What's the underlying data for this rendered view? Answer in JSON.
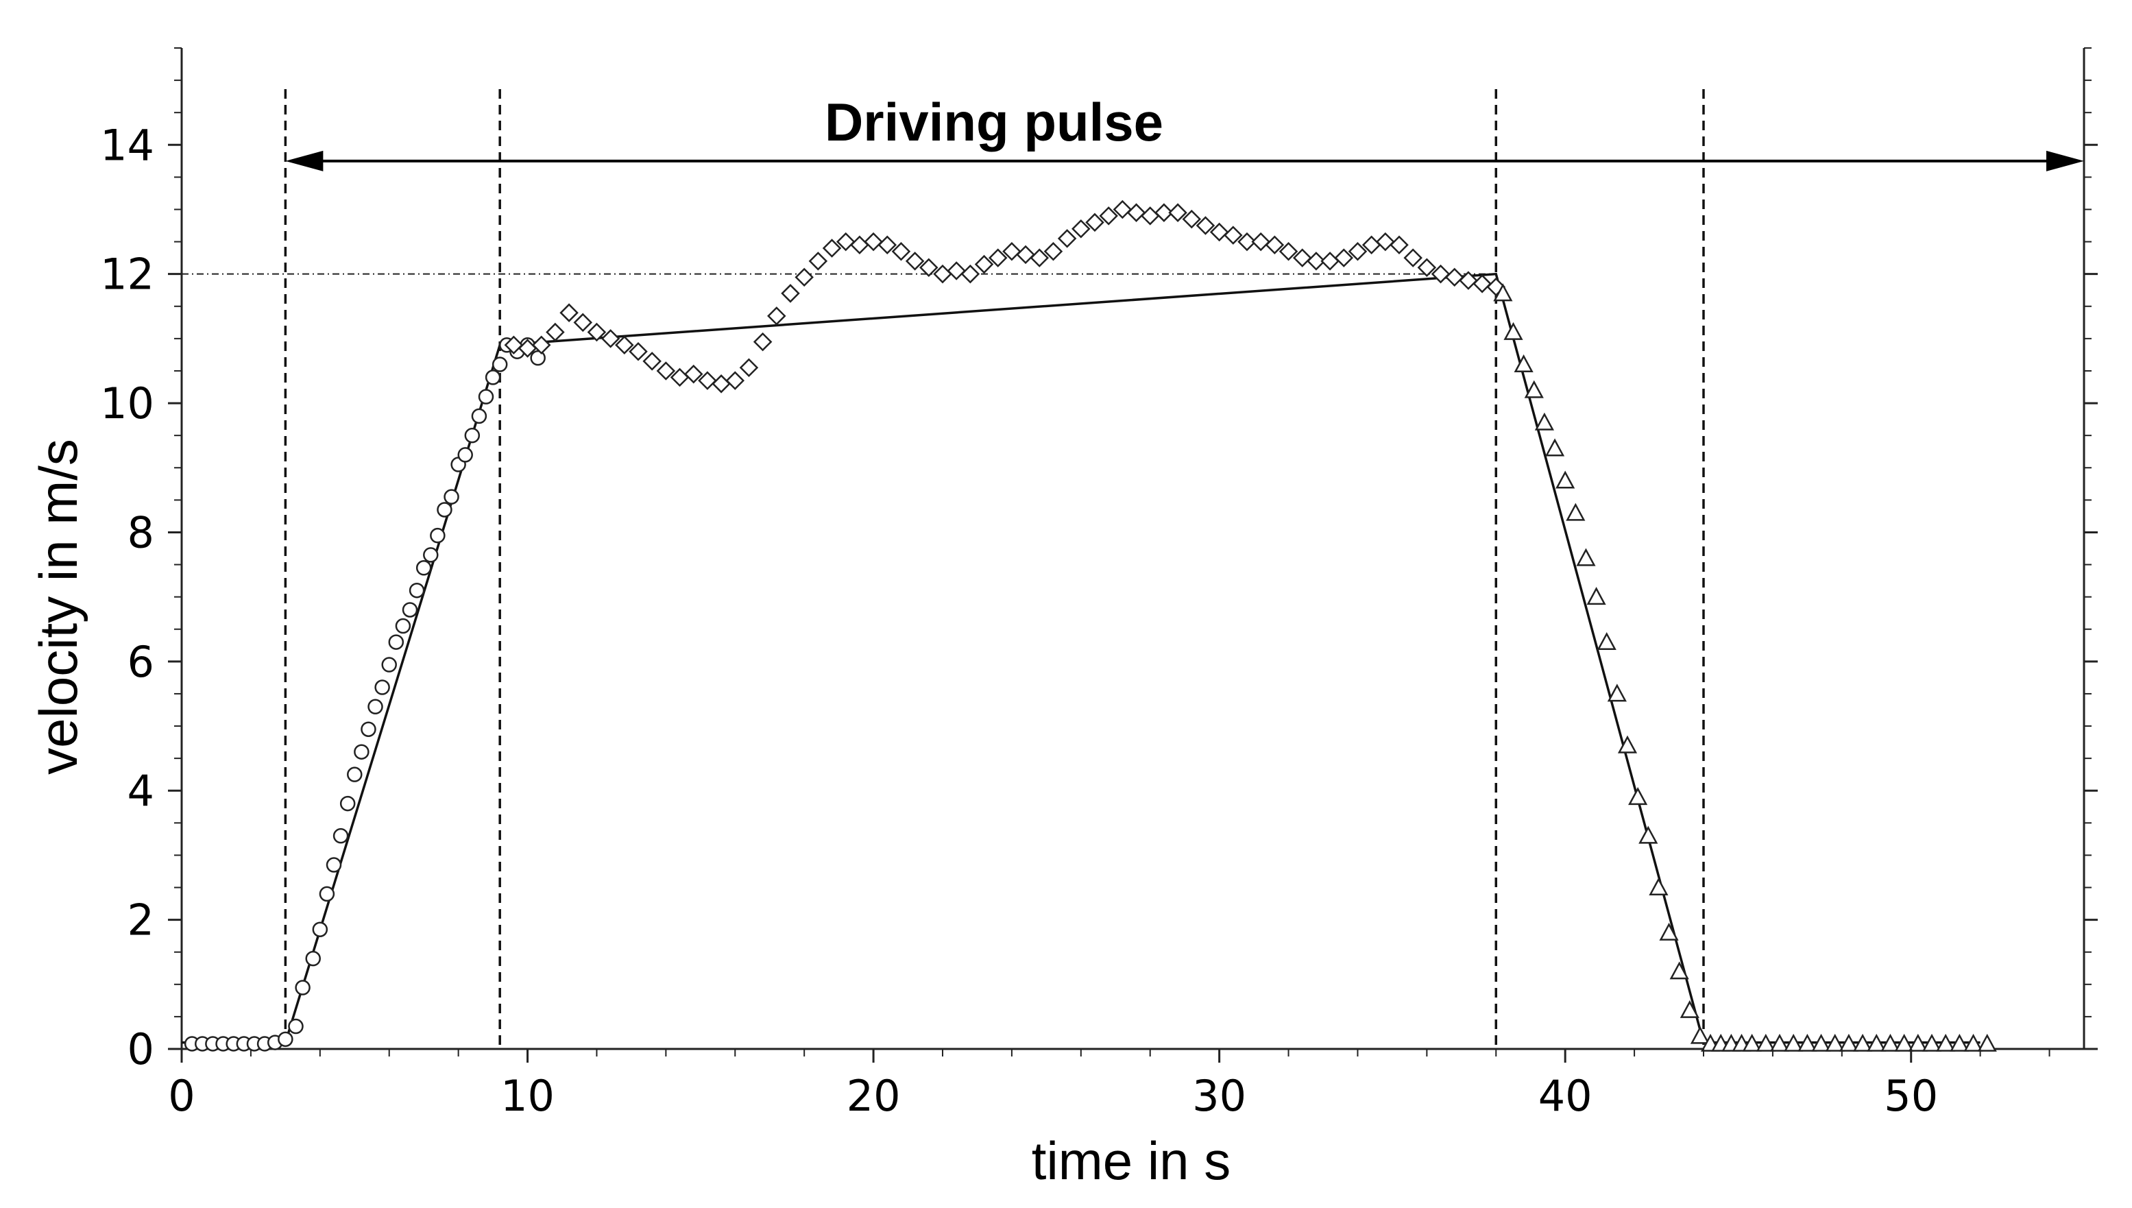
{
  "chart_data": {
    "type": "scatter",
    "xlabel": "time in s",
    "ylabel": "velocity in m/s",
    "xlim": [
      0,
      55
    ],
    "ylim": [
      0,
      15.5
    ],
    "x_ticks": [
      "0",
      "10",
      "20",
      "30",
      "40",
      "50"
    ],
    "y_ticks": [
      "0",
      "2",
      "4",
      "6",
      "8",
      "10",
      "12",
      "14"
    ],
    "grid": false,
    "annotation": {
      "text": "Driving pulse",
      "arrow_from_x": 3,
      "arrow_to_x": 55,
      "arrow_y": 13.75
    },
    "reference_line_y": 12,
    "vertical_lines_x": [
      3,
      9.2,
      38,
      44
    ],
    "trapezoid_line": {
      "x": [
        0,
        3,
        9.2,
        38,
        44,
        52
      ],
      "y": [
        0.1,
        0.1,
        10.9,
        12.0,
        0.1,
        0.1
      ]
    },
    "series": [
      {
        "marker": "circle",
        "x": [
          0.3,
          0.6,
          0.9,
          1.2,
          1.5,
          1.8,
          2.1,
          2.4,
          2.7,
          3.0,
          3.3,
          3.5,
          3.8,
          4.0,
          4.2,
          4.4,
          4.6,
          4.8,
          5.0,
          5.2,
          5.4,
          5.6,
          5.8,
          6.0,
          6.2,
          6.4,
          6.6,
          6.8,
          7.0,
          7.2,
          7.4,
          7.6,
          7.8,
          8.0,
          8.2,
          8.4,
          8.6,
          8.8,
          9.0,
          9.2,
          9.4,
          9.7,
          10.0,
          10.3
        ],
        "y": [
          0.08,
          0.08,
          0.08,
          0.08,
          0.08,
          0.08,
          0.08,
          0.08,
          0.1,
          0.15,
          0.35,
          0.95,
          1.4,
          1.85,
          2.4,
          2.85,
          3.3,
          3.8,
          4.25,
          4.6,
          4.95,
          5.3,
          5.6,
          5.95,
          6.3,
          6.55,
          6.8,
          7.1,
          7.45,
          7.65,
          7.95,
          8.35,
          8.55,
          9.05,
          9.2,
          9.5,
          9.8,
          10.1,
          10.4,
          10.6,
          10.9,
          10.8,
          10.9,
          10.7
        ]
      },
      {
        "marker": "diamond",
        "x": [
          9.6,
          10.0,
          10.4,
          10.8,
          11.2,
          11.6,
          12.0,
          12.4,
          12.8,
          13.2,
          13.6,
          14.0,
          14.4,
          14.8,
          15.2,
          15.6,
          16.0,
          16.4,
          16.8,
          17.2,
          17.6,
          18.0,
          18.4,
          18.8,
          19.2,
          19.6,
          20.0,
          20.4,
          20.8,
          21.2,
          21.6,
          22.0,
          22.4,
          22.8,
          23.2,
          23.6,
          24.0,
          24.4,
          24.8,
          25.2,
          25.6,
          26.0,
          26.4,
          26.8,
          27.2,
          27.6,
          28.0,
          28.4,
          28.8,
          29.2,
          29.6,
          30.0,
          30.4,
          30.8,
          31.2,
          31.6,
          32.0,
          32.4,
          32.8,
          33.2,
          33.6,
          34.0,
          34.4,
          34.8,
          35.2,
          35.6,
          36.0,
          36.4,
          36.8,
          37.2,
          37.6,
          38.0
        ],
        "y": [
          10.9,
          10.85,
          10.9,
          11.1,
          11.4,
          11.25,
          11.1,
          11.0,
          10.9,
          10.8,
          10.65,
          10.5,
          10.4,
          10.45,
          10.35,
          10.3,
          10.35,
          10.55,
          10.95,
          11.35,
          11.7,
          11.95,
          12.2,
          12.4,
          12.5,
          12.45,
          12.5,
          12.45,
          12.35,
          12.2,
          12.1,
          12.0,
          12.05,
          12.0,
          12.15,
          12.25,
          12.35,
          12.3,
          12.25,
          12.35,
          12.55,
          12.7,
          12.8,
          12.9,
          13.0,
          12.95,
          12.9,
          12.95,
          12.95,
          12.85,
          12.75,
          12.65,
          12.6,
          12.5,
          12.5,
          12.45,
          12.35,
          12.25,
          12.2,
          12.2,
          12.25,
          12.35,
          12.45,
          12.5,
          12.45,
          12.25,
          12.1,
          12.0,
          11.95,
          11.9,
          11.85,
          11.8
        ]
      },
      {
        "marker": "triangle",
        "x": [
          38.2,
          38.5,
          38.8,
          39.1,
          39.4,
          39.7,
          40.0,
          40.3,
          40.6,
          40.9,
          41.2,
          41.5,
          41.8,
          42.1,
          42.4,
          42.7,
          43.0,
          43.3,
          43.6,
          43.9,
          44.2,
          44.5,
          44.8,
          45.1,
          45.4,
          45.8,
          46.2,
          46.6,
          47.0,
          47.4,
          47.8,
          48.2,
          48.6,
          49.0,
          49.4,
          49.8,
          50.2,
          50.6,
          51.0,
          51.4,
          51.8,
          52.2
        ],
        "y": [
          11.7,
          11.1,
          10.6,
          10.2,
          9.7,
          9.3,
          8.8,
          8.3,
          7.6,
          7.0,
          6.3,
          5.5,
          4.7,
          3.9,
          3.3,
          2.5,
          1.8,
          1.2,
          0.6,
          0.2,
          0.08,
          0.08,
          0.08,
          0.08,
          0.08,
          0.08,
          0.08,
          0.08,
          0.08,
          0.08,
          0.08,
          0.08,
          0.08,
          0.08,
          0.08,
          0.08,
          0.08,
          0.08,
          0.08,
          0.08,
          0.08,
          0.08
        ]
      }
    ]
  }
}
